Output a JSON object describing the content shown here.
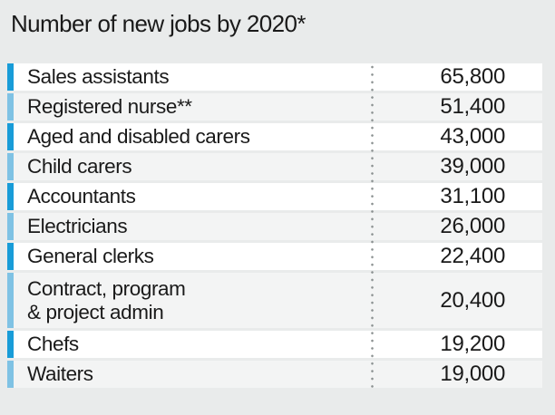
{
  "title": "Number of new jobs by 2020*",
  "colors": {
    "page_bg": "#e9ebeb",
    "row_bg": "#ffffff",
    "row_alt_bg": "#f3f4f4",
    "bar_dark": "#189cd8",
    "bar_light": "#7fc2e4",
    "text": "#1a1a1a",
    "dot": "#8a9090"
  },
  "rows": [
    {
      "label": "Sales assistants",
      "value": "65,800"
    },
    {
      "label": "Registered nurse**",
      "value": "51,400"
    },
    {
      "label": "Aged and disabled carers",
      "value": "43,000"
    },
    {
      "label": "Child carers",
      "value": "39,000"
    },
    {
      "label": "Accountants",
      "value": "31,100"
    },
    {
      "label": "Electricians",
      "value": "26,000"
    },
    {
      "label": "General clerks",
      "value": "22,400"
    },
    {
      "label": "Contract, program\n& project admin",
      "value": "20,400"
    },
    {
      "label": "Chefs",
      "value": "19,200"
    },
    {
      "label": "Waiters",
      "value": "19,000"
    }
  ],
  "chart_data": {
    "type": "table",
    "title": "Number of new jobs by 2020*",
    "categories": [
      "Sales assistants",
      "Registered nurse**",
      "Aged and disabled carers",
      "Child carers",
      "Accountants",
      "Electricians",
      "General clerks",
      "Contract, program & project admin",
      "Chefs",
      "Waiters"
    ],
    "values": [
      65800,
      51400,
      43000,
      39000,
      31100,
      26000,
      22400,
      20400,
      19200,
      19000
    ],
    "value_labels": [
      "65,800",
      "51,400",
      "43,000",
      "39,000",
      "31,100",
      "26,000",
      "22,400",
      "20,400",
      "19,200",
      "19,000"
    ],
    "layout_hints": {
      "row_bands_alternate": true,
      "left_marker_colors_alternate": [
        "#189cd8",
        "#7fc2e4"
      ],
      "value_column_separator": "dotted-vertical-line",
      "values_aligned": "right"
    }
  }
}
